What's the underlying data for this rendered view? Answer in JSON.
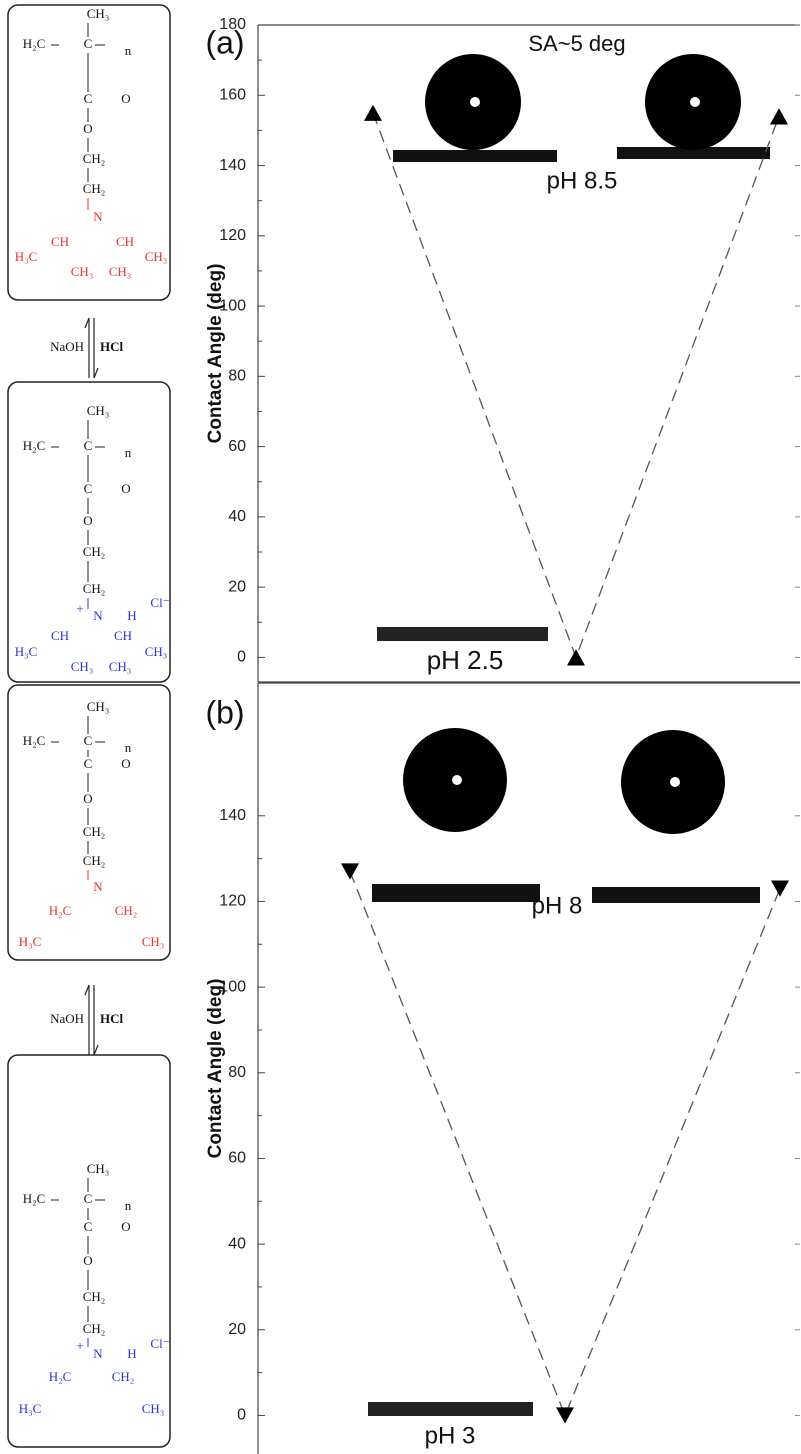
{
  "chart_data": [
    {
      "type": "line",
      "label": "(a)",
      "ylabel": "Contact Angle (deg)",
      "categories": [
        null,
        null,
        null
      ],
      "series": [
        {
          "values": [
            155,
            0,
            154
          ],
          "color": "#000000",
          "marker": "triangle-up",
          "linestyle": "dashed"
        }
      ],
      "ylim": [
        -7,
        180
      ],
      "yticks": [
        0,
        20,
        40,
        60,
        80,
        100,
        120,
        140,
        160,
        180
      ],
      "annotations": [
        "SA~5 deg",
        "pH 8.5",
        "pH 2.5"
      ]
    },
    {
      "type": "line",
      "label": "(b)",
      "ylabel": "Contact Angle (deg)",
      "categories": [
        null,
        null,
        null
      ],
      "series": [
        {
          "values": [
            127,
            0,
            123
          ],
          "color": "#000000",
          "marker": "triangle-down",
          "linestyle": "dashed"
        }
      ],
      "ylim": [
        -9,
        171
      ],
      "yticks": [
        0,
        20,
        40,
        60,
        80,
        100,
        120,
        140
      ],
      "annotations": [
        "pH 8",
        "pH 3"
      ]
    }
  ],
  "structures": [
    {
      "backbone": [
        "CH₃",
        "H₂C",
        "C",
        "n",
        "C",
        "O",
        "O",
        "CH₂",
        "CH₂"
      ],
      "side": [
        "N",
        "CH",
        "CH",
        "H₃C",
        "CH₃",
        "CH₃",
        "CH₃"
      ],
      "color": "#e8322c"
    },
    {
      "backbone": [
        "CH₃",
        "H₂C",
        "C",
        "n",
        "C",
        "O",
        "O",
        "CH₂",
        "CH₂"
      ],
      "side": [
        "+",
        "N",
        "H",
        "Cl⁻",
        "CH",
        "CH",
        "H₃C",
        "CH₃",
        "CH₃",
        "CH₃"
      ],
      "color": "#2a35d6"
    },
    {
      "backbone": [
        "CH₃",
        "H₂C",
        "C",
        "n",
        "C",
        "O",
        "O",
        "CH₂",
        "CH₂"
      ],
      "side": [
        "N",
        "H₂C",
        "CH₂",
        "H₃C",
        "CH₃"
      ],
      "color": "#e8322c"
    },
    {
      "backbone": [
        "CH₃",
        "H₂C",
        "C",
        "n",
        "C",
        "O",
        "O",
        "CH₂",
        "CH₂"
      ],
      "side": [
        "+",
        "N",
        "H",
        "Cl⁻",
        "H₂C",
        "CH₂",
        "H₃C",
        "CH₃"
      ],
      "color": "#2a35d6"
    }
  ],
  "equilibria": [
    {
      "left": "NaOH",
      "right": "HCl"
    },
    {
      "left": "NaOH",
      "right": "HCl"
    }
  ]
}
